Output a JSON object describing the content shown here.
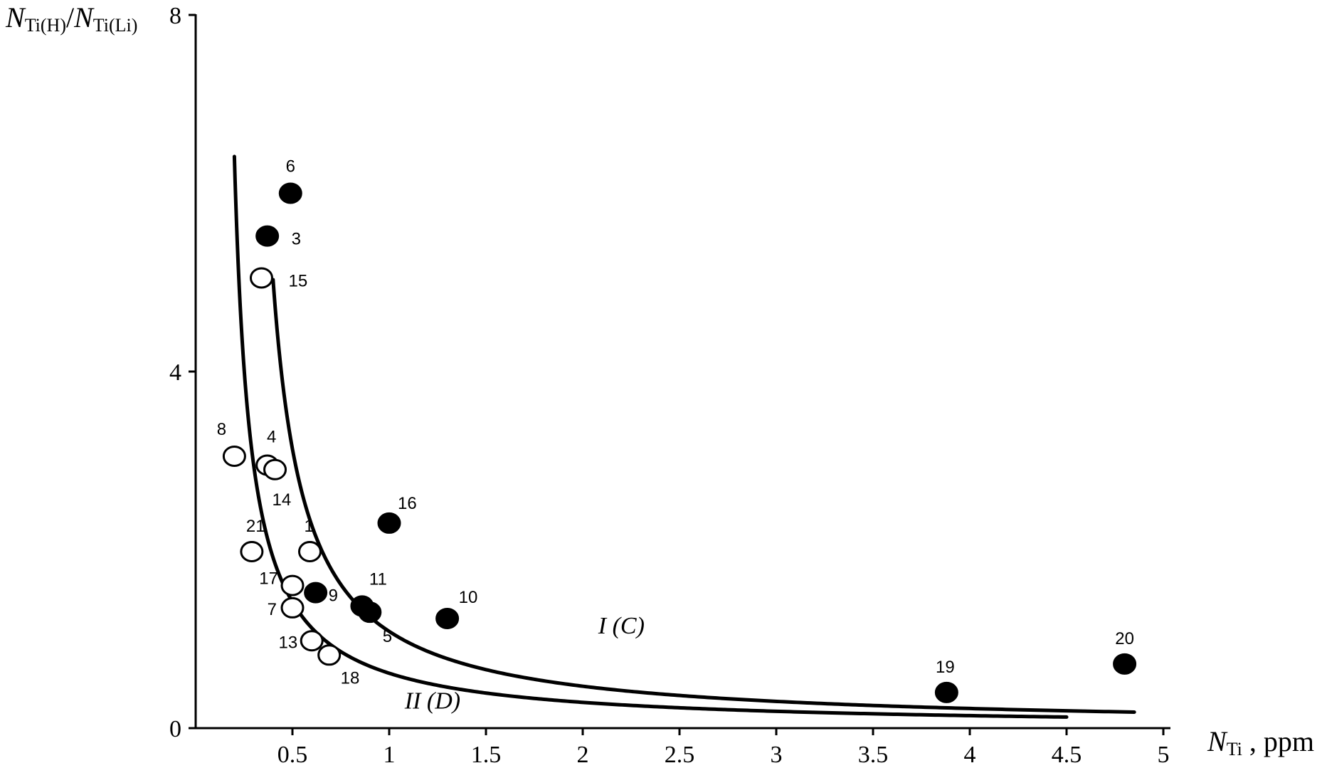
{
  "chart_data": {
    "type": "scatter",
    "title": "",
    "xlabel": {
      "main": "N",
      "sub": "Ti",
      "suffix": " , ppm"
    },
    "ylabel": {
      "num": "N",
      "num_sub": "Ti(H)",
      "sep": "/",
      "den": "N",
      "den_sub": "Ti(Li)"
    },
    "xlim": [
      0,
      5.05
    ],
    "ylim": [
      0,
      8
    ],
    "xticks": [
      0.5,
      1,
      1.5,
      2,
      2.5,
      3,
      3.5,
      4,
      4.5,
      5
    ],
    "xtick_labels": [
      "0.5",
      "1",
      "1.5",
      "2",
      "2.5",
      "3",
      "3.5",
      "4",
      "4.5",
      "5"
    ],
    "yticks": [
      0,
      4,
      8
    ],
    "ytick_labels": [
      "0",
      "4",
      "8"
    ],
    "grid": false,
    "series": [
      {
        "marker": "filled-circle",
        "points": [
          {
            "id": "6",
            "x": 0.49,
            "y": 6.0
          },
          {
            "id": "3",
            "x": 0.37,
            "y": 5.52
          },
          {
            "id": "16",
            "x": 1.0,
            "y": 2.3
          },
          {
            "id": "9",
            "x": 0.62,
            "y": 1.52
          },
          {
            "id": "11",
            "x": 0.86,
            "y": 1.37
          },
          {
            "id": "5",
            "x": 0.9,
            "y": 1.3
          },
          {
            "id": "10",
            "x": 1.3,
            "y": 1.23
          },
          {
            "id": "19",
            "x": 3.88,
            "y": 0.4
          },
          {
            "id": "20",
            "x": 4.8,
            "y": 0.72
          }
        ]
      },
      {
        "marker": "open-circle",
        "points": [
          {
            "id": "15",
            "x": 0.34,
            "y": 5.05
          },
          {
            "id": "8",
            "x": 0.2,
            "y": 3.05
          },
          {
            "id": "4",
            "x": 0.37,
            "y": 2.95
          },
          {
            "id": "14",
            "x": 0.41,
            "y": 2.9
          },
          {
            "id": "21",
            "x": 0.29,
            "y": 1.98
          },
          {
            "id": "1",
            "x": 0.59,
            "y": 1.98
          },
          {
            "id": "17",
            "x": 0.5,
            "y": 1.6
          },
          {
            "id": "7",
            "x": 0.5,
            "y": 1.35
          },
          {
            "id": "13",
            "x": 0.6,
            "y": 0.98
          },
          {
            "id": "18",
            "x": 0.69,
            "y": 0.82
          }
        ]
      }
    ],
    "curves": [
      {
        "label_roman": "I",
        "label_letter": "C",
        "label_pos": [
          2.08,
          1.06
        ],
        "k": 0.83,
        "x0": 0.235,
        "x_start": 0.4,
        "x_end": 4.85
      },
      {
        "label_roman": "II",
        "label_letter": "D",
        "label_pos": [
          1.08,
          0.22
        ],
        "k": 0.545,
        "x0": 0.115,
        "x_start": 0.2,
        "x_end": 4.5
      }
    ]
  }
}
